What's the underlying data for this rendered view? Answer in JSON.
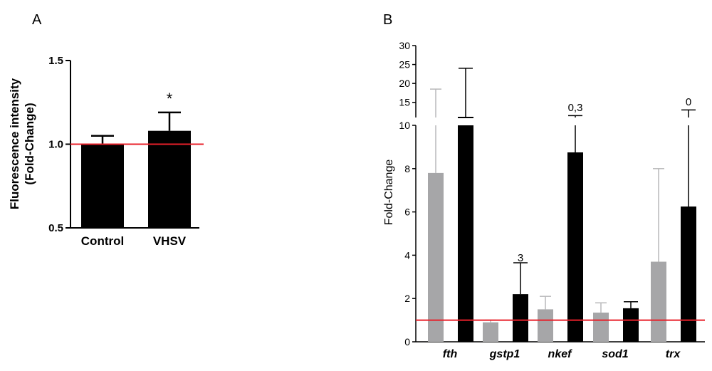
{
  "chart_data": [
    {
      "panel": "A",
      "type": "bar",
      "xlabel": "",
      "ylabel": "Fluorescence intensity (Fold-Change)",
      "ylabel_lines": [
        "Fluorescence intensity",
        "(Fold-Change)"
      ],
      "ylim": [
        0.5,
        1.5
      ],
      "yticks": [
        "0.5",
        "1.0",
        "1.5"
      ],
      "categories": [
        "Control",
        "VHSV"
      ],
      "values": [
        1.0,
        1.08
      ],
      "error": [
        0.05,
        0.11
      ],
      "significance": [
        "",
        "*"
      ],
      "reference_line": 1.0,
      "colors": {
        "bar": "#000000",
        "reference_line": "#e8202a"
      }
    },
    {
      "panel": "B",
      "type": "bar",
      "xlabel": "",
      "ylabel": "Fold-Change",
      "y_axis_break": true,
      "ylim_lower": [
        0,
        10
      ],
      "ylim_upper": [
        11,
        30
      ],
      "yticks_lower": [
        "0",
        "2",
        "4",
        "6",
        "8",
        "10"
      ],
      "yticks_upper": [
        "15",
        "20",
        "25",
        "30"
      ],
      "categories": [
        "fth",
        "gstp1",
        "nkef",
        "sod1",
        "trx"
      ],
      "series": [
        {
          "values": [
            7.8,
            0.9,
            1.5,
            1.35,
            3.7
          ],
          "error": [
            18.5,
            1.0,
            2.1,
            1.8,
            8.0
          ],
          "color": "#a6a6a8"
        },
        {
          "values": [
            10.0,
            2.2,
            8.75,
            1.55,
            6.25
          ],
          "error": [
            24.0,
            3.65,
            11.5,
            1.85,
            13.0
          ],
          "color": "#000000"
        }
      ],
      "annotations": [
        {
          "category": "gstp1",
          "text": "3"
        },
        {
          "category": "nkef",
          "text": "0,3"
        },
        {
          "category": "trx",
          "text": "0"
        }
      ],
      "reference_line": 1.0,
      "colors": {
        "reference_line": "#e8202a"
      }
    }
  ]
}
